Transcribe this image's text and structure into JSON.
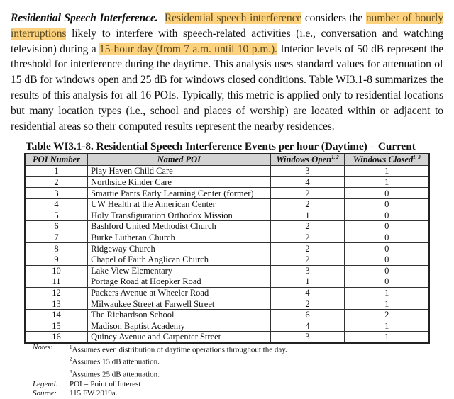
{
  "paragraph": {
    "lead": "Residential Speech Interference.",
    "segments": [
      {
        "text": "Residential speech interference",
        "highlight": true
      },
      {
        "text": " considers the ",
        "highlight": false
      },
      {
        "text": "number of hourly interruptions",
        "highlight": true
      },
      {
        "text": " likely to interfere with speech-related activities (i.e., conversation and watching television) during a ",
        "highlight": false
      },
      {
        "text": "15-hour day (from 7 a.m. until 10 p.m.).",
        "highlight": true
      },
      {
        "text": "  Interior levels of 50 dB represent the threshold for interference during the daytime.  This analysis uses standard values for attenuation of 15 dB for windows open and 25 dB for windows closed conditions.  Table WI3.1-8 summarizes the results of this analysis for all 16 POIs.  Typically, this metric is applied only to residential locations but many location types (i.e., school and places of worship) are located within or adjacent to residential areas so their computed results represent the nearby residences.",
        "highlight": false
      }
    ],
    "highlight_color": "#fdd27e"
  },
  "table": {
    "title": "Table WI3.1-8.  Residential Speech Interference Events per hour (Daytime) – Current",
    "headers": [
      "POI Number",
      "Named POI",
      "Windows Open",
      "Windows Closed"
    ],
    "header_sups": [
      "",
      "",
      "1, 2",
      "1, 3"
    ],
    "rows": [
      [
        "1",
        "Play Haven Child Care",
        "3",
        "1"
      ],
      [
        "2",
        "Northside Kinder Care",
        "4",
        "1"
      ],
      [
        "3",
        "Smartie Pants Early Learning Center (former)",
        "2",
        "0"
      ],
      [
        "4",
        "UW Health at the American Center",
        "2",
        "0"
      ],
      [
        "5",
        "Holy Transfiguration Orthodox Mission",
        "1",
        "0"
      ],
      [
        "6",
        "Bashford United Methodist Church",
        "2",
        "0"
      ],
      [
        "7",
        "Burke Lutheran Church",
        "2",
        "0"
      ],
      [
        "8",
        "Ridgeway Church",
        "2",
        "0"
      ],
      [
        "9",
        "Chapel of Faith Anglican Church",
        "2",
        "0"
      ],
      [
        "10",
        "Lake View Elementary",
        "3",
        "0"
      ],
      [
        "11",
        "Portage Road at Hoepker Road",
        "1",
        "0"
      ],
      [
        "12",
        "Packers Avenue at Wheeler Road",
        "4",
        "1"
      ],
      [
        "13",
        "Milwaukee Street at Farwell Street",
        "2",
        "1"
      ],
      [
        "14",
        "The Richardson School",
        "6",
        "2"
      ],
      [
        "15",
        "Madison Baptist Academy",
        "4",
        "1"
      ],
      [
        "16",
        "Quincy Avenue and Carpenter Street",
        "3",
        "1"
      ]
    ]
  },
  "notes": {
    "notes_label": "Notes:",
    "items": [
      {
        "sup": "1",
        "text": "Assumes even distribution of daytime operations throughout the day."
      },
      {
        "sup": "2",
        "text": "Assumes 15 dB attenuation."
      },
      {
        "sup": "3",
        "text": "Assumes 25 dB attenuation."
      }
    ],
    "legend_label": "Legend:",
    "legend": "POI = Point of Interest",
    "source_label": "Source:",
    "source": "115 FW 2019a."
  }
}
